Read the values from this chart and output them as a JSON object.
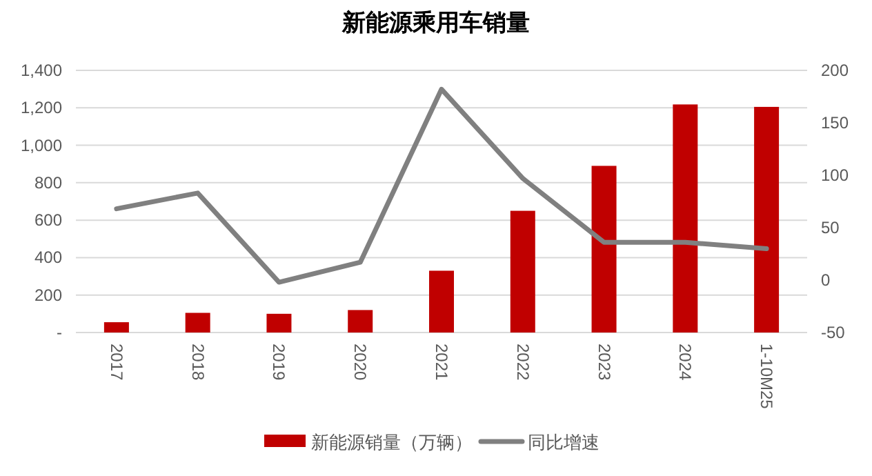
{
  "chart_data": {
    "type": "bar",
    "title": "新能源乘用车销量",
    "categories": [
      "2017",
      "2018",
      "2019",
      "2020",
      "2021",
      "2022",
      "2023",
      "2024",
      "1-10M25"
    ],
    "series": [
      {
        "name": "新能源销量（万辆）",
        "color": "#c00000",
        "values": [
          55,
          105,
          100,
          120,
          330,
          650,
          890,
          1218,
          1205
        ]
      },
      {
        "name": "同比增速",
        "type": "line",
        "axis": "y2",
        "color": "#808080",
        "values": [
          68,
          83,
          -2,
          17,
          182,
          97,
          36,
          36,
          30
        ]
      }
    ],
    "ylim": [
      0,
      1400
    ],
    "yticks": [
      {
        "value": 0,
        "label": "-"
      },
      200,
      400,
      {
        "value": 600,
        "label": "600"
      },
      {
        "value": 800,
        "label": "800"
      },
      {
        "value": 1000,
        "label": "1,000"
      },
      {
        "value": 1200,
        "label": "1,200"
      },
      {
        "value": 1400,
        "label": "1,400"
      }
    ],
    "y2lim": [
      -50,
      200
    ],
    "y2ticks": [
      -50,
      0,
      50,
      100,
      150,
      200
    ],
    "grid": "y",
    "legend": "bottom"
  }
}
